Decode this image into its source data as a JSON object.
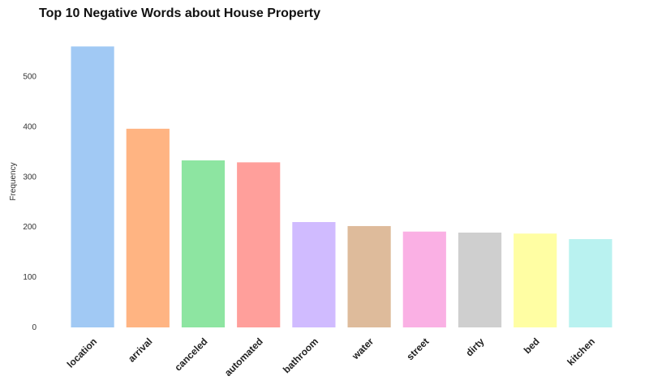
{
  "chart_data": {
    "type": "bar",
    "title": "Top 10 Negative Words about House Property",
    "xlabel": "",
    "ylabel": "Frequency",
    "categories": [
      "location",
      "arrival",
      "canceled",
      "automated",
      "bathroom",
      "water",
      "street",
      "dirty",
      "bed",
      "kitchen"
    ],
    "values": [
      560,
      396,
      333,
      329,
      210,
      202,
      191,
      189,
      187,
      176
    ],
    "colors": [
      "#a1c9f4",
      "#ffb482",
      "#8de5a1",
      "#ff9f9b",
      "#d0bbff",
      "#debb9b",
      "#fab0e4",
      "#cfcfcf",
      "#fffea3",
      "#b9f2f0"
    ],
    "yticks": [
      0,
      100,
      200,
      300,
      400,
      500
    ],
    "ylim": [
      0,
      588
    ],
    "grid": false,
    "legend": "none"
  }
}
